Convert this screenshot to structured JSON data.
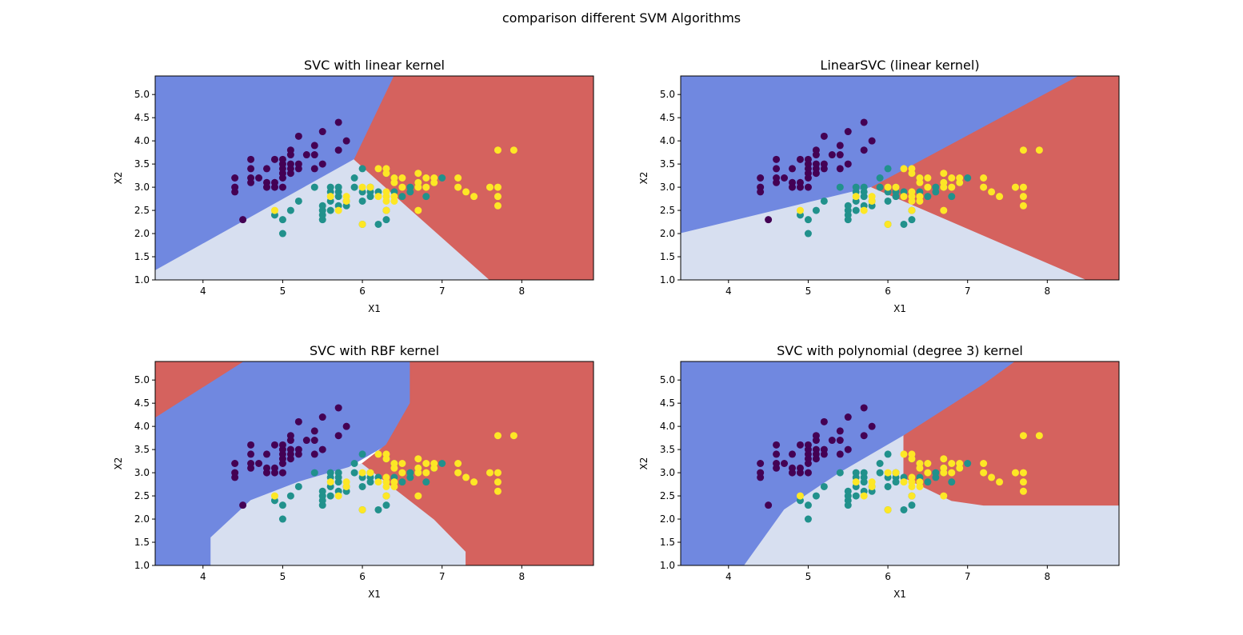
{
  "figure": {
    "suptitle": "comparison different SVM Algorithms"
  },
  "colors": {
    "region_class0": "#7088e0",
    "region_class1": "#d7dff0",
    "region_class2": "#d5625e",
    "point_class0": "#440154",
    "point_class1": "#21918c",
    "point_class2": "#fde725"
  },
  "points": [
    [
      4.4,
      2.9,
      0
    ],
    [
      4.4,
      3.0,
      0
    ],
    [
      4.4,
      3.2,
      0
    ],
    [
      4.5,
      2.3,
      0
    ],
    [
      4.6,
      3.1,
      0
    ],
    [
      4.6,
      3.2,
      0
    ],
    [
      4.6,
      3.4,
      0
    ],
    [
      4.6,
      3.6,
      0
    ],
    [
      4.7,
      3.2,
      0
    ],
    [
      4.8,
      3.0,
      0
    ],
    [
      4.8,
      3.1,
      0
    ],
    [
      4.8,
      3.4,
      0
    ],
    [
      4.9,
      3.0,
      0
    ],
    [
      4.9,
      3.1,
      0
    ],
    [
      4.9,
      3.6,
      0
    ],
    [
      5.0,
      3.0,
      0
    ],
    [
      5.0,
      3.2,
      0
    ],
    [
      5.0,
      3.3,
      0
    ],
    [
      5.0,
      3.4,
      0
    ],
    [
      5.0,
      3.5,
      0
    ],
    [
      5.0,
      3.6,
      0
    ],
    [
      5.1,
      3.3,
      0
    ],
    [
      5.1,
      3.4,
      0
    ],
    [
      5.1,
      3.5,
      0
    ],
    [
      5.1,
      3.7,
      0
    ],
    [
      5.1,
      3.8,
      0
    ],
    [
      5.2,
      3.4,
      0
    ],
    [
      5.2,
      3.5,
      0
    ],
    [
      5.2,
      4.1,
      0
    ],
    [
      5.3,
      3.7,
      0
    ],
    [
      5.4,
      3.4,
      0
    ],
    [
      5.4,
      3.7,
      0
    ],
    [
      5.4,
      3.9,
      0
    ],
    [
      5.5,
      3.5,
      0
    ],
    [
      5.5,
      4.2,
      0
    ],
    [
      5.7,
      3.8,
      0
    ],
    [
      5.7,
      4.4,
      0
    ],
    [
      5.8,
      4.0,
      0
    ],
    [
      4.9,
      2.4,
      1
    ],
    [
      5.0,
      2.0,
      1
    ],
    [
      5.0,
      2.3,
      1
    ],
    [
      5.1,
      2.5,
      1
    ],
    [
      5.2,
      2.7,
      1
    ],
    [
      5.4,
      3.0,
      1
    ],
    [
      5.5,
      2.3,
      1
    ],
    [
      5.5,
      2.4,
      1
    ],
    [
      5.5,
      2.5,
      1
    ],
    [
      5.5,
      2.6,
      1
    ],
    [
      5.6,
      2.5,
      1
    ],
    [
      5.6,
      2.7,
      1
    ],
    [
      5.6,
      2.9,
      1
    ],
    [
      5.6,
      3.0,
      1
    ],
    [
      5.7,
      2.6,
      1
    ],
    [
      5.7,
      2.8,
      1
    ],
    [
      5.7,
      2.9,
      1
    ],
    [
      5.7,
      3.0,
      1
    ],
    [
      5.8,
      2.6,
      1
    ],
    [
      5.8,
      2.7,
      1
    ],
    [
      5.9,
      3.0,
      1
    ],
    [
      5.9,
      3.2,
      1
    ],
    [
      6.0,
      2.2,
      1
    ],
    [
      6.0,
      2.7,
      1
    ],
    [
      6.0,
      2.9,
      1
    ],
    [
      6.0,
      3.4,
      1
    ],
    [
      6.1,
      2.8,
      1
    ],
    [
      6.1,
      2.9,
      1
    ],
    [
      6.1,
      3.0,
      1
    ],
    [
      6.2,
      2.2,
      1
    ],
    [
      6.2,
      2.9,
      1
    ],
    [
      6.3,
      2.3,
      1
    ],
    [
      6.3,
      2.5,
      1
    ],
    [
      6.3,
      3.3,
      1
    ],
    [
      6.4,
      2.9,
      1
    ],
    [
      6.4,
      3.2,
      1
    ],
    [
      6.5,
      2.8,
      1
    ],
    [
      6.6,
      2.9,
      1
    ],
    [
      6.6,
      3.0,
      1
    ],
    [
      6.7,
      3.0,
      1
    ],
    [
      6.7,
      3.1,
      1
    ],
    [
      6.8,
      2.8,
      1
    ],
    [
      6.9,
      3.1,
      1
    ],
    [
      7.0,
      3.2,
      1
    ],
    [
      4.9,
      2.5,
      2
    ],
    [
      5.6,
      2.8,
      2
    ],
    [
      5.7,
      2.5,
      2
    ],
    [
      5.8,
      2.7,
      2
    ],
    [
      5.8,
      2.8,
      2
    ],
    [
      6.0,
      2.2,
      2
    ],
    [
      6.0,
      3.0,
      2
    ],
    [
      6.1,
      3.0,
      2
    ],
    [
      6.2,
      2.8,
      2
    ],
    [
      6.2,
      3.4,
      2
    ],
    [
      6.3,
      2.5,
      2
    ],
    [
      6.3,
      2.7,
      2
    ],
    [
      6.3,
      2.8,
      2
    ],
    [
      6.3,
      2.9,
      2
    ],
    [
      6.3,
      3.3,
      2
    ],
    [
      6.3,
      3.4,
      2
    ],
    [
      6.4,
      2.7,
      2
    ],
    [
      6.4,
      2.8,
      2
    ],
    [
      6.4,
      3.1,
      2
    ],
    [
      6.4,
      3.2,
      2
    ],
    [
      6.5,
      3.0,
      2
    ],
    [
      6.5,
      3.2,
      2
    ],
    [
      6.7,
      2.5,
      2
    ],
    [
      6.7,
      3.0,
      2
    ],
    [
      6.7,
      3.1,
      2
    ],
    [
      6.7,
      3.3,
      2
    ],
    [
      6.8,
      3.0,
      2
    ],
    [
      6.8,
      3.2,
      2
    ],
    [
      6.9,
      3.1,
      2
    ],
    [
      6.9,
      3.2,
      2
    ],
    [
      7.2,
      3.0,
      2
    ],
    [
      7.2,
      3.2,
      2
    ],
    [
      7.3,
      2.9,
      2
    ],
    [
      7.4,
      2.8,
      2
    ],
    [
      7.6,
      3.0,
      2
    ],
    [
      7.7,
      2.6,
      2
    ],
    [
      7.7,
      2.8,
      2
    ],
    [
      7.7,
      3.0,
      2
    ],
    [
      7.7,
      3.8,
      2
    ],
    [
      7.9,
      3.8,
      2
    ]
  ],
  "chart_data": [
    {
      "type": "scatter",
      "title": "SVC with linear kernel",
      "xlabel": "X1",
      "ylabel": "X2",
      "xlim": [
        3.4,
        8.9
      ],
      "ylim": [
        1.0,
        5.4
      ],
      "xticks": [
        "4",
        "5",
        "6",
        "7",
        "8"
      ],
      "yticks": [
        "1.0",
        "1.5",
        "2.0",
        "2.5",
        "3.0",
        "3.5",
        "4.0",
        "4.5",
        "5.0"
      ],
      "decision_regions": {
        "class0": [
          [
            3.4,
            1.2
          ],
          [
            5.9,
            3.6
          ],
          [
            6.4,
            5.4
          ],
          [
            3.4,
            5.4
          ]
        ],
        "class1": [
          [
            3.4,
            1.0
          ],
          [
            7.6,
            1.0
          ],
          [
            5.9,
            3.6
          ],
          [
            3.4,
            1.2
          ]
        ],
        "class2": [
          [
            7.6,
            1.0
          ],
          [
            8.9,
            1.0
          ],
          [
            8.9,
            5.4
          ],
          [
            6.4,
            5.4
          ],
          [
            5.9,
            3.6
          ]
        ]
      }
    },
    {
      "type": "scatter",
      "title": "LinearSVC (linear kernel)",
      "xlabel": "X1",
      "ylabel": "X2",
      "xlim": [
        3.4,
        8.9
      ],
      "ylim": [
        1.0,
        5.4
      ],
      "xticks": [
        "4",
        "5",
        "6",
        "7",
        "8"
      ],
      "yticks": [
        "1.0",
        "1.5",
        "2.0",
        "2.5",
        "3.0",
        "3.5",
        "4.0",
        "4.5",
        "5.0"
      ],
      "decision_regions": {
        "class0": [
          [
            3.4,
            2.0
          ],
          [
            5.8,
            3.0
          ],
          [
            8.4,
            5.4
          ],
          [
            3.4,
            5.4
          ]
        ],
        "class1": [
          [
            3.4,
            1.0
          ],
          [
            8.5,
            1.0
          ],
          [
            5.8,
            3.0
          ],
          [
            3.4,
            2.0
          ]
        ],
        "class2": [
          [
            5.8,
            3.0
          ],
          [
            8.5,
            1.0
          ],
          [
            8.9,
            1.0
          ],
          [
            8.9,
            5.4
          ],
          [
            8.4,
            5.4
          ]
        ]
      }
    },
    {
      "type": "scatter",
      "title": "SVC with RBF kernel",
      "xlabel": "X1",
      "ylabel": "X2",
      "xlim": [
        3.4,
        8.9
      ],
      "ylim": [
        1.0,
        5.4
      ],
      "xticks": [
        "4",
        "5",
        "6",
        "7",
        "8"
      ],
      "yticks": [
        "1.0",
        "1.5",
        "2.0",
        "2.5",
        "3.0",
        "3.5",
        "4.0",
        "4.5",
        "5.0"
      ],
      "decision_regions": {
        "class0": [
          [
            3.4,
            1.0
          ],
          [
            4.1,
            1.0
          ],
          [
            4.1,
            1.6
          ],
          [
            4.6,
            2.4
          ],
          [
            5.2,
            2.8
          ],
          [
            5.8,
            3.1
          ],
          [
            6.3,
            3.6
          ],
          [
            6.6,
            4.5
          ],
          [
            6.6,
            5.4
          ],
          [
            4.5,
            5.4
          ],
          [
            3.4,
            4.2
          ]
        ],
        "class1": [
          [
            4.1,
            1.0
          ],
          [
            7.3,
            1.0
          ],
          [
            7.3,
            1.3
          ],
          [
            6.9,
            2.0
          ],
          [
            6.0,
            3.2
          ],
          [
            5.8,
            3.1
          ],
          [
            5.2,
            2.8
          ],
          [
            4.6,
            2.4
          ],
          [
            4.1,
            1.6
          ]
        ],
        "class2a": [
          [
            7.3,
            1.0
          ],
          [
            8.9,
            1.0
          ],
          [
            8.9,
            5.4
          ],
          [
            6.6,
            5.4
          ],
          [
            6.6,
            4.5
          ],
          [
            6.3,
            3.6
          ],
          [
            6.0,
            3.2
          ],
          [
            6.9,
            2.0
          ],
          [
            7.3,
            1.3
          ]
        ],
        "class2b": [
          [
            3.4,
            4.2
          ],
          [
            4.5,
            5.4
          ],
          [
            3.4,
            5.4
          ]
        ]
      }
    },
    {
      "type": "scatter",
      "title": "SVC with polynomial (degree 3) kernel",
      "xlabel": "X1",
      "ylabel": "X2",
      "xlim": [
        3.4,
        8.9
      ],
      "ylim": [
        1.0,
        5.4
      ],
      "xticks": [
        "4",
        "5",
        "6",
        "7",
        "8"
      ],
      "yticks": [
        "1.0",
        "1.5",
        "2.0",
        "2.5",
        "3.0",
        "3.5",
        "4.0",
        "4.5",
        "5.0"
      ],
      "decision_regions": {
        "class0": [
          [
            3.4,
            1.0
          ],
          [
            4.2,
            1.0
          ],
          [
            4.7,
            2.2
          ],
          [
            5.4,
            3.0
          ],
          [
            6.2,
            3.8
          ],
          [
            7.2,
            4.9
          ],
          [
            7.6,
            5.4
          ],
          [
            3.4,
            5.4
          ]
        ],
        "class1": [
          [
            4.2,
            1.0
          ],
          [
            8.9,
            1.0
          ],
          [
            8.9,
            2.3
          ],
          [
            7.2,
            2.3
          ],
          [
            6.8,
            2.4
          ],
          [
            6.2,
            2.9
          ],
          [
            6.2,
            3.8
          ],
          [
            5.4,
            3.0
          ],
          [
            4.7,
            2.2
          ]
        ],
        "class2": [
          [
            6.2,
            2.9
          ],
          [
            6.8,
            2.4
          ],
          [
            7.2,
            2.3
          ],
          [
            8.9,
            2.3
          ],
          [
            8.9,
            5.4
          ],
          [
            7.6,
            5.4
          ],
          [
            7.2,
            4.9
          ],
          [
            6.2,
            3.8
          ]
        ]
      }
    }
  ]
}
